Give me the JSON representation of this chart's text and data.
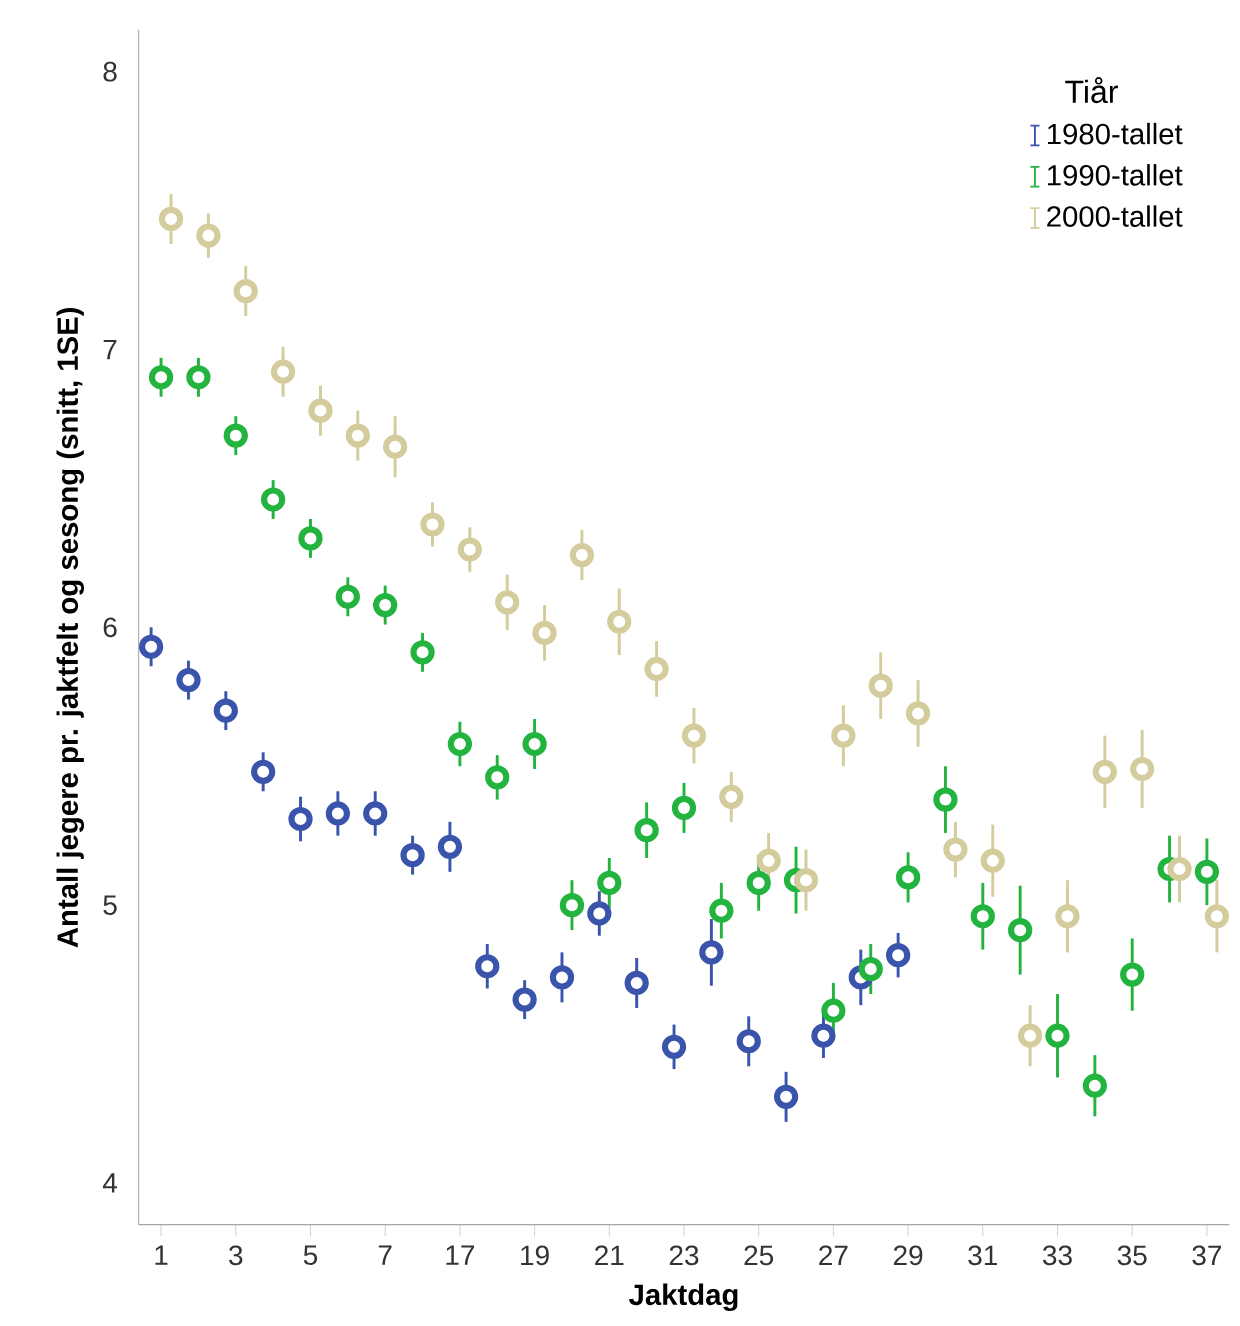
{
  "chart_data": {
    "type": "scatter",
    "xlabel": "Jaktdag",
    "ylabel": "Antall jegere pr. jaktfelt og sesong (snitt, 1SE)",
    "legend_title": "Tiår",
    "legend": "top right",
    "grid": false,
    "categories": [
      "1",
      null,
      "3",
      null,
      "5",
      null,
      "7",
      null,
      "17",
      null,
      "19",
      null,
      "21",
      null,
      "23",
      null,
      "25",
      null,
      "27",
      null,
      "29",
      null,
      "31",
      null,
      "33",
      null,
      "35",
      null,
      "37"
    ],
    "ylim": [
      3.85,
      8.15
    ],
    "yticks": [
      4,
      5,
      6,
      7,
      8
    ],
    "series": [
      {
        "name": "1980-tallet",
        "color": "#3b54ab",
        "values": [
          5.93,
          5.81,
          5.7,
          5.48,
          5.31,
          5.33,
          5.33,
          5.18,
          5.21,
          4.78,
          4.66,
          4.74,
          4.97,
          4.72,
          4.49,
          4.83,
          4.51,
          4.31,
          4.53,
          4.74,
          4.82,
          null,
          null,
          null,
          null,
          null,
          null,
          null,
          null
        ],
        "errors": [
          0.07,
          0.07,
          0.07,
          0.07,
          0.08,
          0.08,
          0.08,
          0.07,
          0.09,
          0.08,
          0.07,
          0.09,
          0.08,
          0.09,
          0.08,
          0.12,
          0.09,
          0.09,
          0.08,
          0.1,
          0.08,
          null,
          null,
          null,
          null,
          null,
          null,
          null,
          null
        ]
      },
      {
        "name": "1990-tallet",
        "color": "#23b33f",
        "values": [
          6.9,
          6.9,
          6.69,
          6.46,
          6.32,
          6.11,
          6.08,
          5.91,
          5.58,
          5.46,
          5.58,
          5.0,
          5.08,
          5.27,
          5.35,
          4.98,
          5.08,
          5.09,
          4.62,
          4.77,
          5.1,
          5.38,
          4.96,
          4.91,
          4.53,
          4.35,
          4.75,
          5.13,
          5.12
        ],
        "errors": [
          0.07,
          0.07,
          0.07,
          0.07,
          0.07,
          0.07,
          0.07,
          0.07,
          0.08,
          0.08,
          0.09,
          0.09,
          0.09,
          0.1,
          0.09,
          0.1,
          0.1,
          0.12,
          0.1,
          0.09,
          0.09,
          0.12,
          0.12,
          0.16,
          0.15,
          0.11,
          0.13,
          0.12,
          0.12
        ]
      },
      {
        "name": "2000-tallet",
        "color": "#d4cc9c",
        "values": [
          7.47,
          7.41,
          7.21,
          6.92,
          6.78,
          6.69,
          6.65,
          6.37,
          6.28,
          6.09,
          5.98,
          6.26,
          6.02,
          5.85,
          5.61,
          5.39,
          5.16,
          5.09,
          5.61,
          5.79,
          5.69,
          5.2,
          5.16,
          4.53,
          4.96,
          5.48,
          5.49,
          5.13,
          4.96
        ],
        "errors": [
          0.09,
          0.08,
          0.09,
          0.09,
          0.09,
          0.09,
          0.11,
          0.08,
          0.08,
          0.1,
          0.1,
          0.09,
          0.12,
          0.1,
          0.1,
          0.09,
          0.1,
          0.11,
          0.11,
          0.12,
          0.12,
          0.1,
          0.13,
          0.11,
          0.13,
          0.13,
          0.14,
          0.12,
          0.13
        ]
      }
    ]
  }
}
